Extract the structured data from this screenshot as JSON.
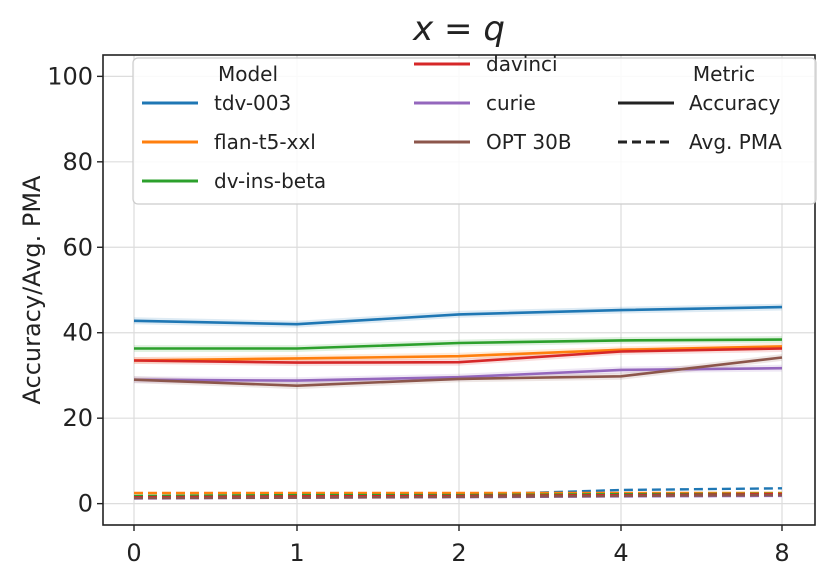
{
  "chart_data": {
    "type": "line",
    "title": "x = q",
    "xlabel": "",
    "ylabel": "Accuracy/Avg. PMA",
    "categories": [
      "0",
      "1",
      "2",
      "4",
      "8"
    ],
    "ylim": [
      -5,
      105
    ],
    "yticks": [
      0,
      20,
      40,
      60,
      80,
      100
    ],
    "grid": true,
    "legend_position": "top",
    "legend": {
      "model_title": "Model",
      "metric_title": "Metric",
      "metrics": [
        {
          "label": "Accuracy",
          "dash": "solid"
        },
        {
          "label": "Avg. PMA",
          "dash": "dashed"
        }
      ]
    },
    "series": [
      {
        "name": "tdv-003",
        "color": "#1f77b4",
        "accuracy": [
          42.8,
          42.0,
          44.3,
          45.3,
          46.0
        ],
        "avg_pma": [
          1.5,
          1.8,
          2.0,
          3.2,
          3.6
        ]
      },
      {
        "name": "flan-t5-xxl",
        "color": "#ff7f0e",
        "accuracy": [
          33.5,
          34.0,
          34.5,
          36.0,
          36.8
        ],
        "avg_pma": [
          2.5,
          2.5,
          2.5,
          2.5,
          2.5
        ]
      },
      {
        "name": "dv-ins-beta",
        "color": "#2ca02c",
        "accuracy": [
          36.3,
          36.3,
          37.6,
          38.2,
          38.4
        ],
        "avg_pma": [
          1.8,
          2.0,
          2.0,
          2.2,
          2.3
        ]
      },
      {
        "name": "davinci",
        "color": "#d62728",
        "accuracy": [
          33.5,
          33.0,
          33.1,
          35.6,
          36.3
        ],
        "avg_pma": [
          1.5,
          1.7,
          1.8,
          2.0,
          2.2
        ]
      },
      {
        "name": "curie",
        "color": "#9467bd",
        "accuracy": [
          29.0,
          28.8,
          29.6,
          31.3,
          31.7
        ],
        "avg_pma": [
          1.2,
          1.4,
          1.5,
          1.7,
          1.8
        ]
      },
      {
        "name": "OPT 30B",
        "color": "#8c564b",
        "accuracy": [
          29.0,
          27.6,
          29.2,
          29.8,
          34.2
        ],
        "avg_pma": [
          1.3,
          1.4,
          1.6,
          1.8,
          2.0
        ]
      }
    ]
  }
}
